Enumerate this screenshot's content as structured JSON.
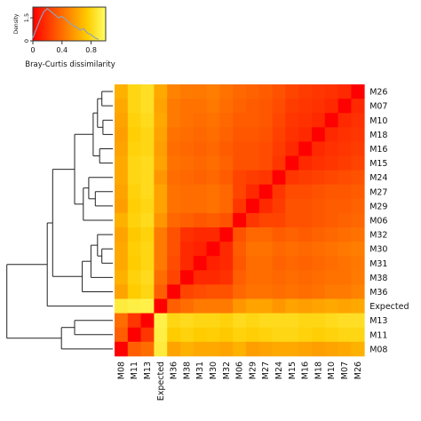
{
  "chart_data": {
    "type": "heatmap",
    "title": "",
    "xlabel": "",
    "ylabel": "",
    "labels": [
      "M08",
      "M11",
      "M13",
      "Expected",
      "M36",
      "M38",
      "M31",
      "M30",
      "M32",
      "M06",
      "M29",
      "M27",
      "M24",
      "M15",
      "M16",
      "M18",
      "M10",
      "M07",
      "M26"
    ],
    "colorbar": {
      "label": "Bray-Curtis dissimilarity",
      "density_label": "Density",
      "ticks": [
        "0",
        "0.4",
        "0.8"
      ],
      "tick_values": [
        0,
        0.4,
        0.8
      ],
      "density_ticks": [
        "0",
        "1.5"
      ],
      "range": [
        0,
        1
      ]
    },
    "colormap": [
      "#ff0000",
      "#ff4400",
      "#ff8800",
      "#ffcc00",
      "#ffff66"
    ],
    "density_curve": {
      "x": [
        0.0,
        0.05,
        0.1,
        0.15,
        0.2,
        0.25,
        0.3,
        0.35,
        0.4,
        0.45,
        0.5,
        0.55,
        0.6,
        0.65,
        0.7,
        0.75,
        0.8,
        0.85,
        0.9
      ],
      "y": [
        0.2,
        0.8,
        1.4,
        1.9,
        2.1,
        1.9,
        1.7,
        1.5,
        1.6,
        1.4,
        1.2,
        1.0,
        0.9,
        0.7,
        0.8,
        0.5,
        0.4,
        0.2,
        0.1
      ]
    },
    "values": [
      [
        0.0,
        0.35,
        0.4,
        0.9,
        0.6,
        0.65,
        0.62,
        0.62,
        0.6,
        0.65,
        0.58,
        0.6,
        0.62,
        0.62,
        0.6,
        0.58,
        0.6,
        0.62,
        0.65
      ],
      [
        0.35,
        0.0,
        0.2,
        0.92,
        0.75,
        0.78,
        0.75,
        0.76,
        0.74,
        0.78,
        0.76,
        0.78,
        0.8,
        0.8,
        0.78,
        0.76,
        0.78,
        0.8,
        0.8
      ],
      [
        0.4,
        0.2,
        0.0,
        0.93,
        0.8,
        0.82,
        0.8,
        0.8,
        0.78,
        0.82,
        0.8,
        0.82,
        0.82,
        0.82,
        0.8,
        0.8,
        0.82,
        0.84,
        0.84
      ],
      [
        0.9,
        0.92,
        0.93,
        0.0,
        0.35,
        0.4,
        0.45,
        0.45,
        0.45,
        0.55,
        0.6,
        0.6,
        0.55,
        0.6,
        0.58,
        0.6,
        0.62,
        0.6,
        0.62
      ],
      [
        0.6,
        0.75,
        0.8,
        0.35,
        0.0,
        0.25,
        0.28,
        0.3,
        0.3,
        0.38,
        0.42,
        0.42,
        0.4,
        0.42,
        0.4,
        0.42,
        0.45,
        0.45,
        0.48
      ],
      [
        0.65,
        0.78,
        0.82,
        0.4,
        0.25,
        0.0,
        0.15,
        0.15,
        0.18,
        0.35,
        0.4,
        0.4,
        0.38,
        0.4,
        0.38,
        0.4,
        0.42,
        0.42,
        0.45
      ],
      [
        0.62,
        0.75,
        0.8,
        0.45,
        0.28,
        0.15,
        0.0,
        0.12,
        0.15,
        0.32,
        0.4,
        0.4,
        0.36,
        0.38,
        0.36,
        0.38,
        0.4,
        0.42,
        0.44
      ],
      [
        0.62,
        0.76,
        0.8,
        0.45,
        0.3,
        0.15,
        0.12,
        0.0,
        0.15,
        0.34,
        0.42,
        0.42,
        0.38,
        0.4,
        0.38,
        0.4,
        0.42,
        0.44,
        0.46
      ],
      [
        0.6,
        0.74,
        0.78,
        0.45,
        0.3,
        0.18,
        0.15,
        0.15,
        0.0,
        0.3,
        0.38,
        0.38,
        0.34,
        0.36,
        0.34,
        0.36,
        0.38,
        0.4,
        0.42
      ],
      [
        0.65,
        0.78,
        0.82,
        0.55,
        0.38,
        0.35,
        0.32,
        0.34,
        0.3,
        0.0,
        0.2,
        0.25,
        0.25,
        0.3,
        0.3,
        0.32,
        0.34,
        0.36,
        0.38
      ],
      [
        0.58,
        0.76,
        0.8,
        0.6,
        0.42,
        0.4,
        0.4,
        0.42,
        0.38,
        0.2,
        0.0,
        0.15,
        0.22,
        0.3,
        0.3,
        0.32,
        0.34,
        0.34,
        0.36
      ],
      [
        0.6,
        0.78,
        0.82,
        0.6,
        0.42,
        0.4,
        0.4,
        0.42,
        0.38,
        0.25,
        0.15,
        0.0,
        0.2,
        0.28,
        0.28,
        0.3,
        0.32,
        0.32,
        0.34
      ],
      [
        0.62,
        0.8,
        0.82,
        0.55,
        0.4,
        0.38,
        0.36,
        0.38,
        0.34,
        0.25,
        0.22,
        0.2,
        0.0,
        0.2,
        0.22,
        0.24,
        0.26,
        0.28,
        0.3
      ],
      [
        0.62,
        0.8,
        0.82,
        0.6,
        0.42,
        0.4,
        0.38,
        0.4,
        0.36,
        0.3,
        0.3,
        0.28,
        0.2,
        0.0,
        0.15,
        0.18,
        0.2,
        0.22,
        0.25
      ],
      [
        0.6,
        0.78,
        0.8,
        0.58,
        0.4,
        0.38,
        0.36,
        0.38,
        0.34,
        0.3,
        0.3,
        0.28,
        0.22,
        0.15,
        0.0,
        0.15,
        0.18,
        0.2,
        0.22
      ],
      [
        0.58,
        0.76,
        0.8,
        0.6,
        0.42,
        0.4,
        0.38,
        0.4,
        0.36,
        0.32,
        0.32,
        0.3,
        0.24,
        0.18,
        0.15,
        0.0,
        0.15,
        0.18,
        0.2
      ],
      [
        0.6,
        0.78,
        0.82,
        0.62,
        0.45,
        0.42,
        0.4,
        0.42,
        0.38,
        0.34,
        0.34,
        0.32,
        0.26,
        0.2,
        0.18,
        0.15,
        0.0,
        0.15,
        0.18
      ],
      [
        0.62,
        0.8,
        0.84,
        0.6,
        0.45,
        0.42,
        0.42,
        0.44,
        0.4,
        0.36,
        0.34,
        0.32,
        0.28,
        0.22,
        0.2,
        0.18,
        0.15,
        0.0,
        0.15
      ],
      [
        0.65,
        0.8,
        0.84,
        0.62,
        0.48,
        0.45,
        0.44,
        0.46,
        0.42,
        0.38,
        0.36,
        0.34,
        0.3,
        0.25,
        0.22,
        0.2,
        0.18,
        0.15,
        0.0
      ]
    ]
  }
}
